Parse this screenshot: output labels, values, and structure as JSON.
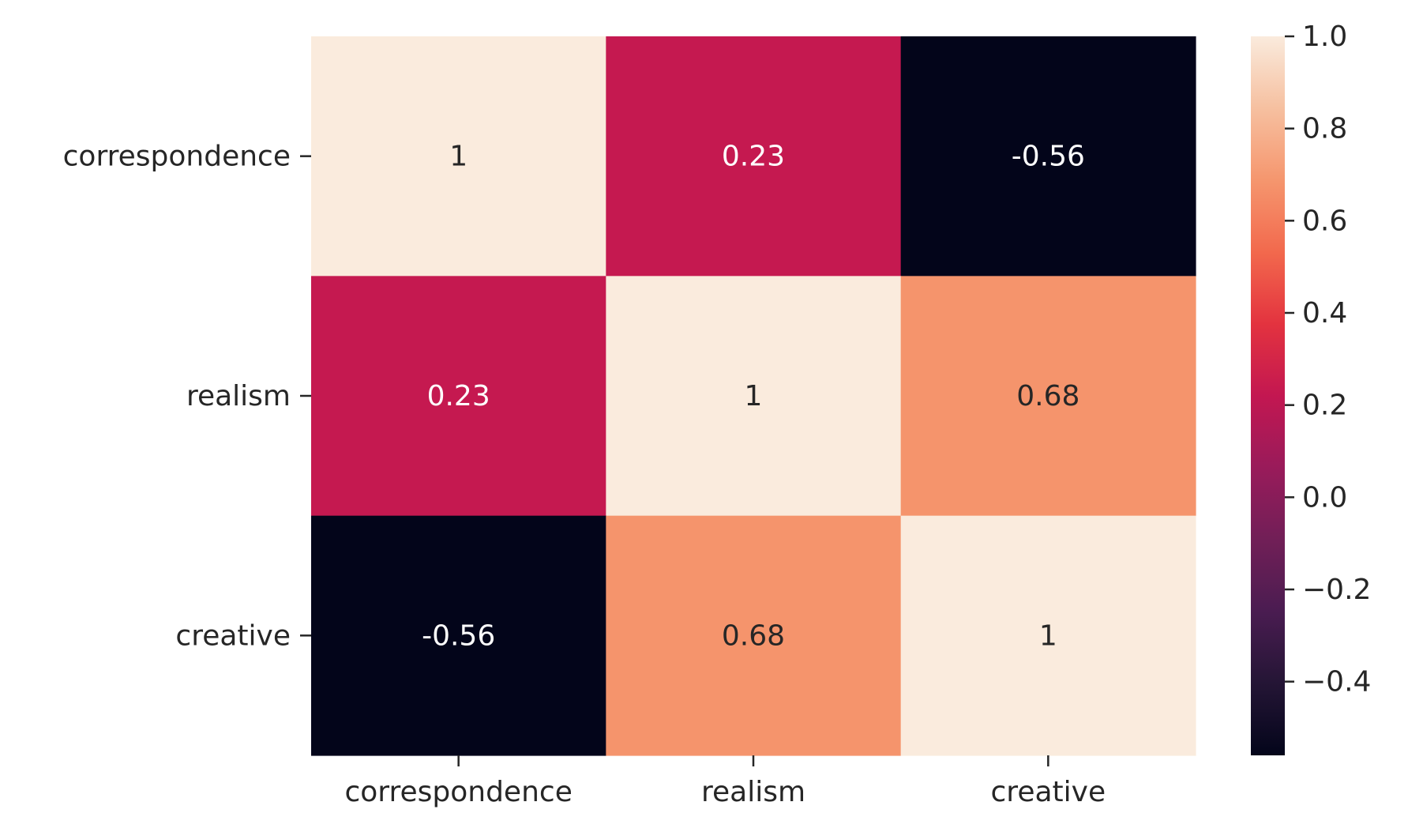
{
  "chart_data": {
    "type": "heatmap",
    "title": "",
    "xlabel": "",
    "ylabel": "",
    "x_categories": [
      "correspondence",
      "realism",
      "creative"
    ],
    "y_categories": [
      "correspondence",
      "realism",
      "creative"
    ],
    "values": [
      [
        1,
        0.23,
        -0.56
      ],
      [
        0.23,
        1,
        0.68
      ],
      [
        -0.56,
        0.68,
        1
      ]
    ],
    "annotations": [
      [
        "1",
        "0.23",
        "-0.56"
      ],
      [
        "0.23",
        "1",
        "0.68"
      ],
      [
        "-0.56",
        "0.68",
        "1"
      ]
    ],
    "colorbar": {
      "range": [
        -0.56,
        1.0
      ],
      "ticks": [
        1.0,
        0.8,
        0.6,
        0.4,
        0.2,
        0.0,
        -0.2,
        -0.4
      ],
      "tick_labels": [
        "1.0",
        "0.8",
        "0.6",
        "0.4",
        "0.2",
        "0.0",
        "−0.2",
        "−0.4"
      ],
      "colormap": "rocket"
    },
    "grid": false,
    "legend": "colorbar-right"
  }
}
